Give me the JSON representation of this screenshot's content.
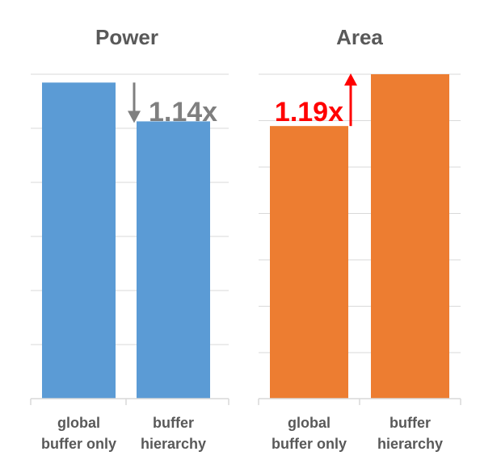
{
  "chart_data": [
    {
      "type": "bar",
      "title": "Power",
      "categories": [
        [
          "global",
          "buffer only"
        ],
        [
          "buffer",
          "hierarchy"
        ]
      ],
      "values": [
        1.14,
        1.0
      ],
      "ylim": [
        0,
        1.17
      ],
      "grid": true,
      "color": "#5B9BD5",
      "annotation": {
        "text": "1.14x",
        "direction": "down",
        "color": "#7F7F7F"
      }
    },
    {
      "type": "bar",
      "title": "Area",
      "categories": [
        [
          "global",
          "buffer only"
        ],
        [
          "buffer",
          "hierarchy"
        ]
      ],
      "values": [
        1.0,
        1.19
      ],
      "ylim": [
        0,
        1.19
      ],
      "grid": true,
      "color": "#ED7D31",
      "annotation": {
        "text": "1.19x",
        "direction": "up",
        "color": "#FF0000"
      }
    }
  ]
}
